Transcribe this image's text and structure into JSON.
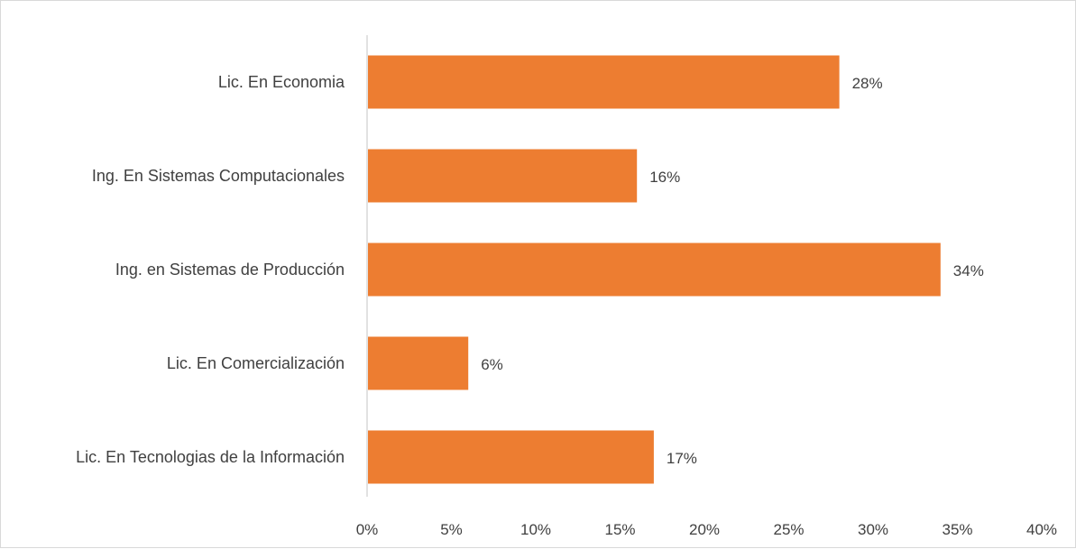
{
  "chart_data": {
    "type": "bar",
    "orientation": "horizontal",
    "categories": [
      "Lic. En Economia",
      "Ing. En Sistemas Computacionales",
      "Ing. en Sistemas de Producción",
      "Lic. En Comercialización",
      "Lic. En Tecnologias de la Información"
    ],
    "values": [
      28,
      16,
      34,
      6,
      17
    ],
    "data_labels": [
      "28%",
      "16%",
      "34%",
      "6%",
      "17%"
    ],
    "xlim": [
      0,
      40
    ],
    "x_ticks": [
      0,
      5,
      10,
      15,
      20,
      25,
      30,
      35,
      40
    ],
    "x_tick_labels": [
      "0%",
      "5%",
      "10%",
      "15%",
      "20%",
      "25%",
      "30%",
      "35%",
      "40%"
    ],
    "bar_color": "#ED7D31",
    "grid": false,
    "legend": "none"
  }
}
